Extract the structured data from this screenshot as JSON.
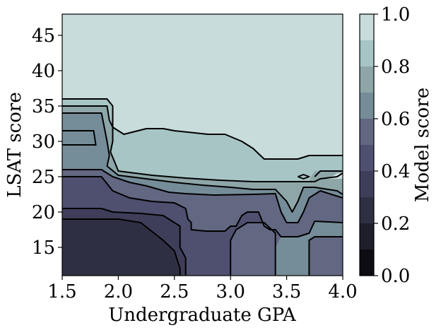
{
  "chart_data": {
    "type": "heatmap",
    "subtype": "filled-contour",
    "title": "",
    "xlabel": "Undergraduate GPA",
    "ylabel": "LSAT score",
    "xlim": [
      1.5,
      4.0
    ],
    "ylim": [
      11,
      48
    ],
    "xticks": [
      "1.5",
      "2.0",
      "2.5",
      "3.0",
      "3.5",
      "4.0"
    ],
    "yticks": [
      "15",
      "20",
      "25",
      "30",
      "35",
      "40",
      "45"
    ],
    "grid": false,
    "colorbar": {
      "label": "Model score",
      "ticks": [
        "0.0",
        "0.2",
        "0.4",
        "0.6",
        "0.8",
        "1.0"
      ],
      "range": [
        0.0,
        1.0
      ],
      "levels": [
        0.0,
        0.1,
        0.2,
        0.3,
        0.4,
        0.5,
        0.6,
        0.7,
        0.8,
        0.9,
        1.0
      ],
      "colors": [
        "#0c0c12",
        "#1f1f2c",
        "#2f2f43",
        "#3f3e5a",
        "#4f4f70",
        "#626782",
        "#758d98",
        "#8ea6a8",
        "#a7c5c5",
        "#c8dcdb",
        "#ecf3f3"
      ]
    },
    "regions": [
      {
        "level": 0.9,
        "polygon": [
          [
            1.5,
            48
          ],
          [
            4.0,
            48
          ],
          [
            4.0,
            11
          ],
          [
            1.5,
            11
          ]
        ]
      },
      {
        "level": 0.8,
        "polygon": [
          [
            1.5,
            36
          ],
          [
            1.9,
            36
          ],
          [
            1.95,
            35
          ],
          [
            1.95,
            32
          ],
          [
            2.0,
            31.5
          ],
          [
            2.05,
            31
          ],
          [
            2.25,
            31.8
          ],
          [
            2.4,
            31.8
          ],
          [
            2.5,
            31.5
          ],
          [
            2.8,
            31
          ],
          [
            2.95,
            31
          ],
          [
            3.1,
            30
          ],
          [
            3.2,
            29
          ],
          [
            3.3,
            27.5
          ],
          [
            3.6,
            27.5
          ],
          [
            3.7,
            28
          ],
          [
            4.0,
            28
          ],
          [
            4.0,
            11
          ],
          [
            1.5,
            11
          ]
        ]
      },
      {
        "level": 0.7,
        "polygon": [
          [
            1.5,
            35
          ],
          [
            1.9,
            35
          ],
          [
            1.92,
            33
          ],
          [
            1.95,
            32
          ],
          [
            1.95,
            30
          ],
          [
            1.93,
            28.5
          ],
          [
            1.97,
            27
          ],
          [
            2.0,
            25.8
          ],
          [
            2.3,
            25.2
          ],
          [
            2.6,
            24.8
          ],
          [
            2.9,
            24.5
          ],
          [
            3.2,
            24.3
          ],
          [
            3.5,
            24.3
          ],
          [
            3.75,
            24.3
          ],
          [
            4.0,
            24.3
          ],
          [
            4.0,
            11
          ],
          [
            1.5,
            11
          ]
        ]
      },
      {
        "level": 0.6,
        "polygon": [
          [
            1.5,
            34
          ],
          [
            1.85,
            34
          ],
          [
            1.9,
            30
          ],
          [
            1.92,
            28
          ],
          [
            1.9,
            26.5
          ],
          [
            2.0,
            25.2
          ],
          [
            2.3,
            24.6
          ],
          [
            2.5,
            24.2
          ],
          [
            2.75,
            23.8
          ],
          [
            3.0,
            23.5
          ],
          [
            3.2,
            23.2
          ],
          [
            3.4,
            23.2
          ],
          [
            3.5,
            21.5
          ],
          [
            3.55,
            20
          ],
          [
            3.6,
            21.5
          ],
          [
            3.65,
            23.5
          ],
          [
            3.75,
            23.5
          ],
          [
            3.95,
            23
          ],
          [
            4.0,
            22.5
          ],
          [
            4.0,
            11
          ],
          [
            1.5,
            11
          ]
        ]
      },
      {
        "level": 0.5,
        "polygon": [
          [
            1.5,
            26
          ],
          [
            1.85,
            26
          ],
          [
            1.95,
            25
          ],
          [
            2.1,
            24.2
          ],
          [
            2.25,
            23.7
          ],
          [
            2.45,
            22.8
          ],
          [
            2.6,
            22.6
          ],
          [
            2.85,
            22.4
          ],
          [
            3.2,
            22.5
          ],
          [
            3.4,
            22.6
          ],
          [
            3.45,
            20
          ],
          [
            3.5,
            18.5
          ],
          [
            3.6,
            18.5
          ],
          [
            3.65,
            20
          ],
          [
            3.7,
            22
          ],
          [
            3.8,
            23
          ],
          [
            4.0,
            22
          ],
          [
            4.0,
            18.5
          ],
          [
            3.75,
            18.7
          ],
          [
            3.7,
            17
          ],
          [
            3.6,
            16.5
          ],
          [
            3.45,
            16.5
          ],
          [
            3.4,
            15
          ],
          [
            3.4,
            11
          ],
          [
            1.5,
            11
          ]
        ]
      },
      {
        "level": 0.4,
        "polygon": [
          [
            1.5,
            25
          ],
          [
            1.85,
            25
          ],
          [
            1.95,
            23
          ],
          [
            2.1,
            22
          ],
          [
            2.3,
            21.5
          ],
          [
            2.5,
            21.3
          ],
          [
            2.6,
            20.5
          ],
          [
            2.62,
            19
          ],
          [
            2.65,
            18.5
          ],
          [
            2.65,
            17.5
          ],
          [
            2.78,
            17.3
          ],
          [
            2.95,
            17.3
          ],
          [
            3.0,
            18
          ],
          [
            3.05,
            18
          ],
          [
            3.1,
            19.5
          ],
          [
            3.15,
            20
          ],
          [
            3.25,
            20
          ],
          [
            3.3,
            18
          ],
          [
            3.35,
            17.5
          ],
          [
            3.4,
            17.5
          ],
          [
            3.4,
            11
          ],
          [
            1.5,
            11
          ]
        ]
      },
      {
        "level": 0.3,
        "polygon": [
          [
            1.5,
            20.5
          ],
          [
            1.85,
            20.5
          ],
          [
            1.95,
            20
          ],
          [
            2.2,
            19.8
          ],
          [
            2.4,
            19.5
          ],
          [
            2.55,
            18
          ],
          [
            2.55,
            15
          ],
          [
            2.6,
            13.5
          ],
          [
            2.6,
            11
          ],
          [
            1.5,
            11
          ]
        ]
      },
      {
        "level": 0.2,
        "polygon": [
          [
            1.5,
            19
          ],
          [
            2.0,
            19
          ],
          [
            2.2,
            18.5
          ],
          [
            2.4,
            16
          ],
          [
            2.5,
            14.5
          ],
          [
            2.55,
            12
          ],
          [
            2.55,
            11
          ],
          [
            1.5,
            11
          ]
        ]
      },
      {
        "level": 0.5,
        "polygon": [
          [
            3.0,
            11
          ],
          [
            3.0,
            16
          ],
          [
            3.05,
            17.5
          ],
          [
            3.15,
            18.5
          ],
          [
            3.3,
            18.5
          ],
          [
            3.4,
            17
          ],
          [
            3.4,
            11
          ]
        ]
      },
      {
        "level": 0.5,
        "polygon": [
          [
            3.7,
            11
          ],
          [
            3.7,
            16
          ],
          [
            3.75,
            16.5
          ],
          [
            4.0,
            16.5
          ],
          [
            4.0,
            11
          ]
        ]
      },
      {
        "level": 0.7,
        "polygon": [
          [
            3.7,
            24.2
          ],
          [
            3.72,
            25
          ],
          [
            3.75,
            25.8
          ],
          [
            4.0,
            25.8
          ],
          [
            4.0,
            24.2
          ]
        ]
      },
      {
        "level": 0.9,
        "polygon": [
          [
            3.85,
            24.7
          ],
          [
            3.9,
            25
          ],
          [
            3.95,
            25.5
          ],
          [
            4.0,
            25.5
          ],
          [
            4.0,
            24.7
          ]
        ]
      }
    ],
    "contour_lines": [
      [
        [
          1.5,
          36
        ],
        [
          1.9,
          36
        ],
        [
          1.95,
          35
        ],
        [
          1.95,
          32
        ],
        [
          2.0,
          31.5
        ],
        [
          2.05,
          31
        ],
        [
          2.25,
          31.8
        ],
        [
          2.4,
          31.8
        ],
        [
          2.5,
          31.5
        ],
        [
          2.8,
          31
        ],
        [
          2.95,
          31
        ],
        [
          3.1,
          30
        ],
        [
          3.2,
          29
        ],
        [
          3.3,
          27.5
        ],
        [
          3.6,
          27.5
        ],
        [
          3.7,
          28
        ],
        [
          4.0,
          28
        ]
      ],
      [
        [
          1.5,
          35
        ],
        [
          1.9,
          35
        ],
        [
          1.92,
          33
        ],
        [
          1.95,
          32
        ],
        [
          1.95,
          30
        ],
        [
          1.93,
          28.5
        ],
        [
          1.97,
          27
        ],
        [
          2.0,
          25.8
        ],
        [
          2.3,
          25.2
        ],
        [
          2.6,
          24.8
        ],
        [
          2.9,
          24.5
        ],
        [
          3.2,
          24.3
        ],
        [
          3.75,
          24.3
        ],
        [
          3.8,
          24.7
        ],
        [
          3.95,
          25
        ],
        [
          4.0,
          25.5
        ]
      ],
      [
        [
          1.5,
          34
        ],
        [
          1.85,
          34
        ],
        [
          1.9,
          30
        ],
        [
          1.92,
          28
        ],
        [
          1.9,
          26.5
        ],
        [
          2.0,
          25.2
        ],
        [
          2.3,
          24.6
        ],
        [
          2.5,
          24.2
        ],
        [
          2.75,
          23.8
        ],
        [
          3.0,
          23.5
        ],
        [
          3.2,
          23.2
        ],
        [
          3.4,
          23.2
        ],
        [
          3.5,
          21.5
        ],
        [
          3.55,
          20
        ],
        [
          3.6,
          21.5
        ],
        [
          3.65,
          23.5
        ],
        [
          3.75,
          23.5
        ],
        [
          3.95,
          23
        ],
        [
          4.0,
          22.5
        ]
      ],
      [
        [
          1.5,
          31.5
        ],
        [
          1.78,
          31.5
        ],
        [
          1.8,
          29.5
        ],
        [
          1.5,
          29.5
        ]
      ],
      [
        [
          1.5,
          26
        ],
        [
          1.85,
          26
        ],
        [
          1.95,
          25
        ],
        [
          2.1,
          24.2
        ],
        [
          2.25,
          23.7
        ],
        [
          2.45,
          22.8
        ],
        [
          2.6,
          22.6
        ],
        [
          2.85,
          22.4
        ],
        [
          3.2,
          22.5
        ],
        [
          3.4,
          22.6
        ],
        [
          3.45,
          20
        ],
        [
          3.5,
          18.5
        ],
        [
          3.6,
          18.5
        ],
        [
          3.65,
          20
        ],
        [
          3.7,
          22
        ],
        [
          3.8,
          23
        ],
        [
          4.0,
          22
        ]
      ],
      [
        [
          1.5,
          25
        ],
        [
          1.85,
          25
        ],
        [
          1.95,
          23
        ],
        [
          2.1,
          22
        ],
        [
          2.3,
          21.5
        ],
        [
          2.5,
          21.3
        ],
        [
          2.6,
          20.5
        ],
        [
          2.62,
          19
        ],
        [
          2.65,
          18.5
        ],
        [
          2.65,
          17.5
        ],
        [
          2.78,
          17.3
        ],
        [
          2.95,
          17.3
        ],
        [
          3.0,
          18
        ],
        [
          3.05,
          18
        ],
        [
          3.1,
          19.5
        ],
        [
          3.15,
          20
        ],
        [
          3.25,
          20
        ],
        [
          3.3,
          18
        ],
        [
          3.35,
          17.5
        ],
        [
          3.4,
          17.5
        ],
        [
          3.45,
          16.5
        ],
        [
          3.6,
          16.5
        ],
        [
          3.7,
          17
        ],
        [
          3.75,
          18.7
        ],
        [
          4.0,
          18.5
        ]
      ],
      [
        [
          1.5,
          20.5
        ],
        [
          1.85,
          20.5
        ],
        [
          1.95,
          20
        ],
        [
          2.2,
          19.8
        ],
        [
          2.4,
          19.5
        ],
        [
          2.55,
          18
        ],
        [
          2.55,
          15
        ],
        [
          2.6,
          13.5
        ],
        [
          2.6,
          11
        ]
      ],
      [
        [
          1.5,
          19
        ],
        [
          2.0,
          19
        ],
        [
          2.2,
          18.5
        ],
        [
          2.4,
          16
        ],
        [
          2.5,
          14.5
        ],
        [
          2.55,
          12
        ],
        [
          2.55,
          11
        ]
      ],
      [
        [
          3.0,
          11
        ],
        [
          3.0,
          16
        ],
        [
          3.05,
          17.5
        ],
        [
          3.15,
          18.5
        ],
        [
          3.3,
          18.5
        ],
        [
          3.4,
          17
        ],
        [
          3.4,
          11
        ]
      ],
      [
        [
          3.7,
          11
        ],
        [
          3.7,
          16
        ],
        [
          3.75,
          16.5
        ],
        [
          4.0,
          16.5
        ]
      ],
      [
        [
          3.6,
          25
        ],
        [
          3.65,
          25.3
        ],
        [
          3.7,
          25
        ],
        [
          3.65,
          24.7
        ],
        [
          3.6,
          25
        ]
      ],
      [
        [
          4.0,
          25.8
        ],
        [
          3.8,
          25.8
        ],
        [
          3.75,
          25
        ]
      ]
    ]
  }
}
